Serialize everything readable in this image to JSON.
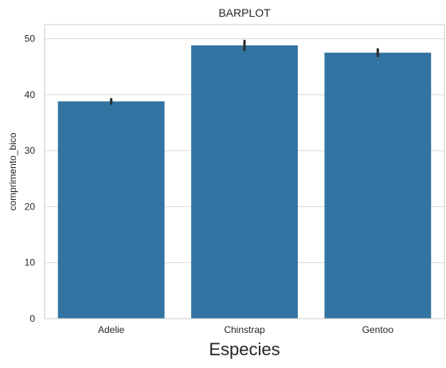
{
  "chart_data": {
    "type": "bar",
    "title": "BARPLOT",
    "xlabel": "Especies",
    "ylabel": "comprimento_bico",
    "categories": [
      "Adelie",
      "Chinstrap",
      "Gentoo"
    ],
    "values": [
      38.8,
      48.8,
      47.5
    ],
    "error_bars": [
      [
        38.4,
        39.2
      ],
      [
        48.0,
        49.6
      ],
      [
        46.9,
        48.1
      ]
    ],
    "ylim": [
      0,
      52.5
    ],
    "yticks": [
      0,
      10,
      20,
      30,
      40,
      50
    ],
    "grid": "horizontal",
    "legend": "none",
    "colors": {
      "bar": "#3274a1",
      "error_bar": "#2b2b2b",
      "grid": "#d9d9d9",
      "axes_edge": "#cccccc",
      "text": "#262626"
    }
  }
}
